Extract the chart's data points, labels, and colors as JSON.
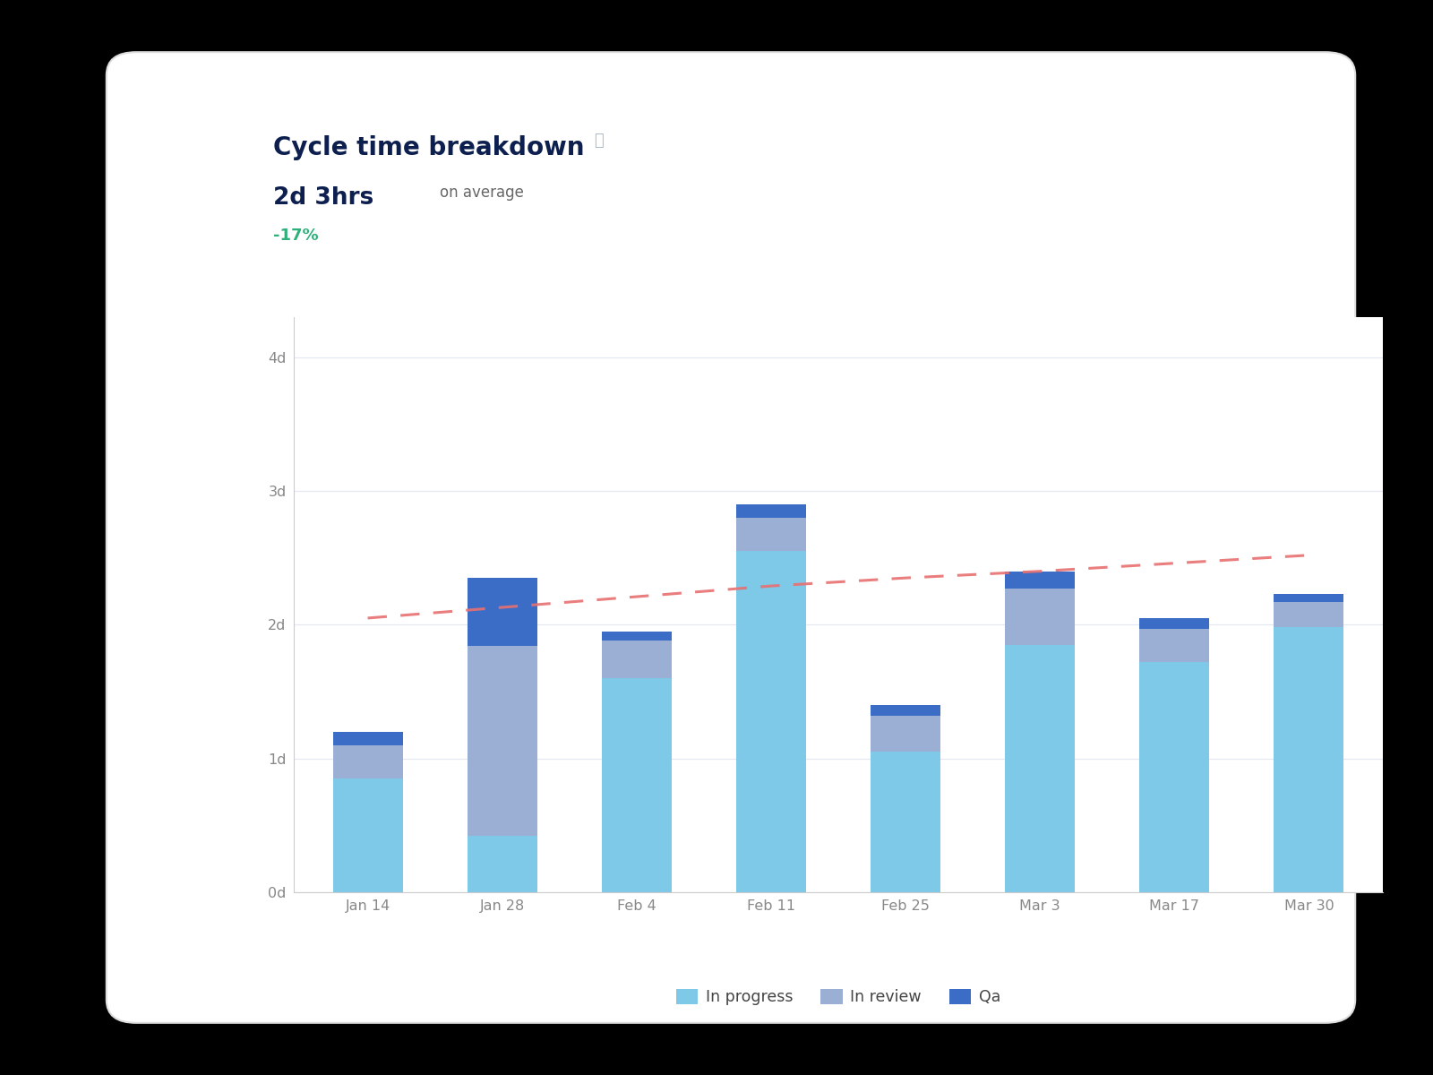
{
  "title": "Cycle time breakdown",
  "subtitle_main": "2d 3hrs",
  "subtitle_sub": "on average",
  "subtitle_change": "-17%",
  "categories": [
    "Jan 14",
    "Jan 28",
    "Feb 4",
    "Feb 11",
    "Feb 25",
    "Mar 3",
    "Mar 17",
    "Mar 30"
  ],
  "in_progress": [
    0.85,
    0.42,
    1.6,
    2.55,
    1.05,
    1.85,
    1.72,
    1.98
  ],
  "in_review": [
    0.25,
    1.42,
    0.28,
    0.25,
    0.27,
    0.42,
    0.25,
    0.19
  ],
  "qa": [
    0.1,
    0.51,
    0.07,
    0.1,
    0.08,
    0.13,
    0.08,
    0.06
  ],
  "trend_y": [
    2.05,
    2.13,
    2.21,
    2.29,
    2.35,
    2.4,
    2.46,
    2.52
  ],
  "color_in_progress": "#7EC8E8",
  "color_in_review": "#9BAED4",
  "color_qa": "#3B6DC7",
  "color_trend": "#E87070",
  "color_bg": "#000000",
  "color_card_face": "#FFFFFF",
  "color_card_edge": "#DDDDDD",
  "color_title": "#0D1F4E",
  "color_subtitle_main": "#0D1F4E",
  "color_subtitle_sub": "#666666",
  "color_change": "#2DB07A",
  "color_grid": "#E5E8F0",
  "color_tick": "#888888",
  "yticks": [
    0,
    1,
    2,
    3,
    4
  ],
  "ytick_labels": [
    "0d",
    "1d",
    "2d",
    "3d",
    "4d"
  ],
  "ylim": [
    0,
    4.3
  ],
  "legend_labels": [
    "In progress",
    "In review",
    "Qa"
  ],
  "info_icon": "ⓘ"
}
